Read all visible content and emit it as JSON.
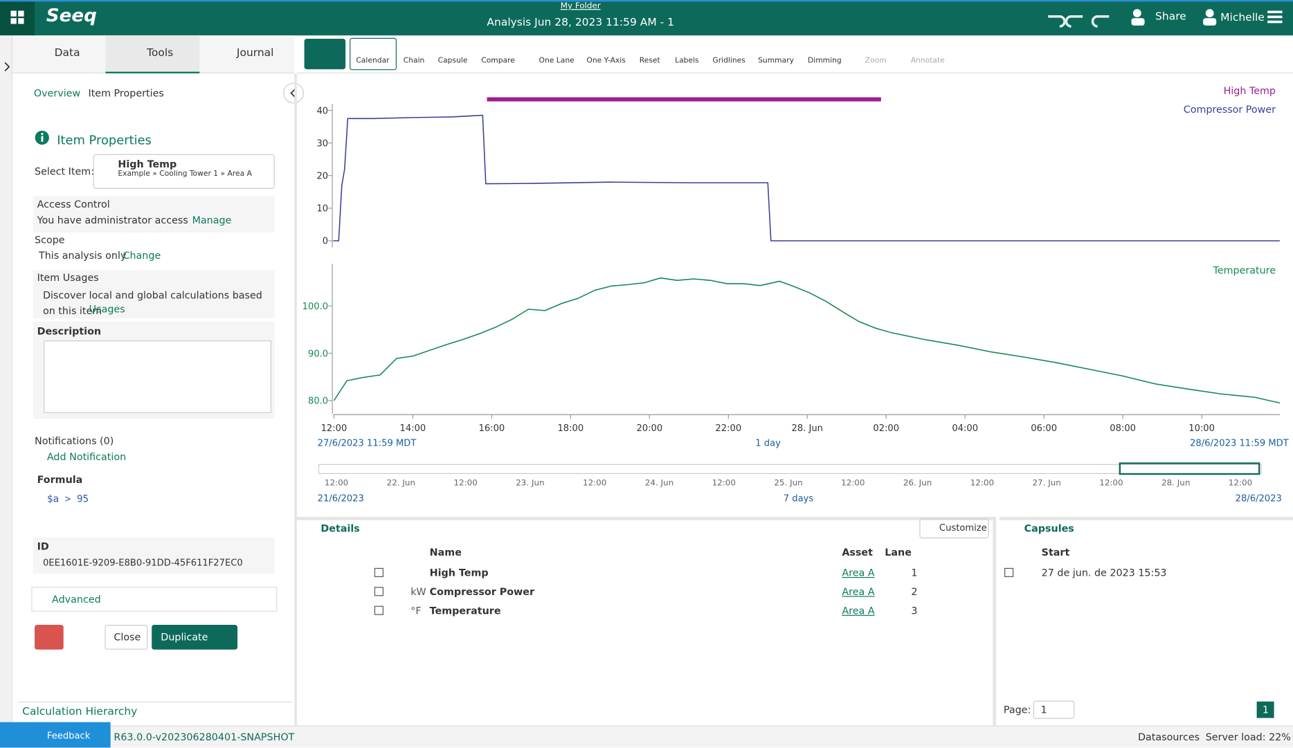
{
  "header": {
    "logo": "Seeq",
    "folder": "My Folder",
    "title": "Analysis Jun 28, 2023 11:59 AM - 1",
    "share": "Share",
    "user": "Michelle"
  },
  "tabs": [
    "Data",
    "Tools",
    "Journal"
  ],
  "toolbar": [
    "Calendar",
    "Chain",
    "Capsule",
    "Compare",
    "One Lane",
    "One Y-Axis",
    "Reset",
    "Labels",
    "Gridlines",
    "Summary",
    "Dimming",
    "Zoom",
    "Annotate"
  ],
  "panel": {
    "breadcrumb": [
      "Overview",
      "Item Properties"
    ],
    "title": "Item Properties",
    "select_label": "Select Item:",
    "item_name": "High Temp",
    "item_path": "Example » Cooling Tower 1 » Area A",
    "access_title": "Access Control",
    "access_text": "You have administrator access",
    "manage": "Manage",
    "scope_title": "Scope",
    "scope_text": "This analysis only",
    "change": "Change",
    "usages_title": "Item Usages",
    "usages_text": "Discover local and global calculations based on this item",
    "usages_link": "Usages",
    "description": "Description",
    "notifications": "Notifications (0)",
    "add_notification": "Add Notification",
    "formula_title": "Formula",
    "formula": "$a > 95",
    "id_title": "ID",
    "id": "0EE1601E-9209-E8B0-91DD-45F611F27EC0",
    "advanced": "Advanced",
    "close": "Close",
    "duplicate": "Duplicate",
    "calc_hierarchy": "Calculation Hierarchy"
  },
  "trend": {
    "xlim": [
      -0.02,
      23.98
    ],
    "xticks": [
      {
        "value": 0,
        "label": "12:00"
      },
      {
        "value": 2,
        "label": "14:00"
      },
      {
        "value": 4,
        "label": "16:00"
      },
      {
        "value": 6,
        "label": "18:00"
      },
      {
        "value": 8,
        "label": "20:00"
      },
      {
        "value": 10,
        "label": "22:00"
      },
      {
        "value": 12,
        "label": "28. Jun"
      },
      {
        "value": 14,
        "label": "02:00"
      },
      {
        "value": 16,
        "label": "04:00"
      },
      {
        "value": 18,
        "label": "06:00"
      },
      {
        "value": 20,
        "label": "08:00"
      },
      {
        "value": 22,
        "label": "10:00"
      }
    ],
    "lane1": {
      "ylim": [
        -2,
        42
      ],
      "yticks": [
        0,
        10,
        20,
        30,
        40
      ],
      "capsule": {
        "name": "High Temp",
        "color": "#9c1f8e",
        "start": 3.88,
        "end": 13.87
      },
      "series": {
        "name": "Compressor Power",
        "color": "#3a3f98",
        "x": [
          -0.02,
          0.12,
          0.2,
          0.27,
          0.35,
          1,
          2,
          3,
          3.77,
          3.85,
          5,
          7,
          9,
          11.0,
          11.08,
          23.98
        ],
        "values": [
          0,
          0,
          17,
          22,
          37.5,
          37.5,
          37.8,
          38,
          38.5,
          17.5,
          17.6,
          18,
          17.8,
          17.8,
          0,
          0
        ]
      }
    },
    "lane2": {
      "ylim": [
        77.2,
        108.9
      ],
      "yticks": [
        {
          "value": 80,
          "label": "80.0"
        },
        {
          "value": 90,
          "label": "90.0"
        },
        {
          "value": 100,
          "label": "100.0"
        }
      ],
      "series": {
        "name": "Temperature",
        "color": "#13874f",
        "x": [
          0,
          0.33,
          0.75,
          1.17,
          1.59,
          2.0,
          2.42,
          2.84,
          3.26,
          3.68,
          4.1,
          4.52,
          4.93,
          5.35,
          5.77,
          6.19,
          6.61,
          7.03,
          7.45,
          7.87,
          8.28,
          8.7,
          9.12,
          9.54,
          9.96,
          10.38,
          10.8,
          11.3,
          11.63,
          12.05,
          12.47,
          12.89,
          13.31,
          13.73,
          14.15,
          14.98,
          15.82,
          16.65,
          17.49,
          18.32,
          19.16,
          20.0,
          20.83,
          21.67,
          22.5,
          23.34,
          23.98
        ],
        "values": [
          80,
          84.2,
          84.9,
          85.4,
          88.9,
          89.4,
          90.6,
          91.8,
          92.9,
          94.1,
          95.5,
          97.2,
          99.3,
          99.0,
          100.5,
          101.6,
          103.3,
          104.2,
          104.5,
          104.9,
          105.9,
          105.4,
          105.7,
          105.4,
          104.7,
          104.7,
          104.3,
          105.2,
          104.2,
          102.8,
          101.0,
          98.8,
          96.7,
          95.3,
          94.3,
          92.9,
          91.7,
          90.3,
          89.2,
          88.0,
          86.6,
          85.2,
          83.5,
          82.4,
          81.4,
          80.7,
          79.5
        ]
      }
    },
    "range_start": "27/6/2023 11:59  MDT",
    "range_step": "1 day",
    "range_end": "28/6/2023 11:59  MDT"
  },
  "navigator": {
    "ticks": [
      "12:00",
      "22. Jun",
      "12:00",
      "23. Jun",
      "12:00",
      "24. Jun",
      "12:00",
      "25. Jun",
      "12:00",
      "26. Jun",
      "12:00",
      "27. Jun",
      "12:00",
      "28. Jun",
      "12:00"
    ],
    "start": "21/6/2023",
    "span": "7 days",
    "end": "28/6/2023"
  },
  "details": {
    "title": "Details",
    "customize": "Customize",
    "headers": [
      "Name",
      "Asset",
      "Lane"
    ],
    "rows": [
      {
        "name": "High Temp",
        "unit": "",
        "asset": "Area A",
        "lane": 1
      },
      {
        "name": "Compressor Power",
        "unit": "kW",
        "asset": "Area A",
        "lane": 2
      },
      {
        "name": "Temperature",
        "unit": "°F",
        "asset": "Area A",
        "lane": 3
      }
    ]
  },
  "capsules": {
    "title": "Capsules",
    "header": "Start",
    "rows": [
      "27 de jun. de 2023 15:53"
    ],
    "page_label": "Page:",
    "page_select": "1",
    "page_button": "1"
  },
  "footer": {
    "feedback": "Feedback",
    "version": "R63.0.0-v202306280401-SNAPSHOT",
    "datasources": "Datasources",
    "server_load": "Server load: 22%"
  }
}
